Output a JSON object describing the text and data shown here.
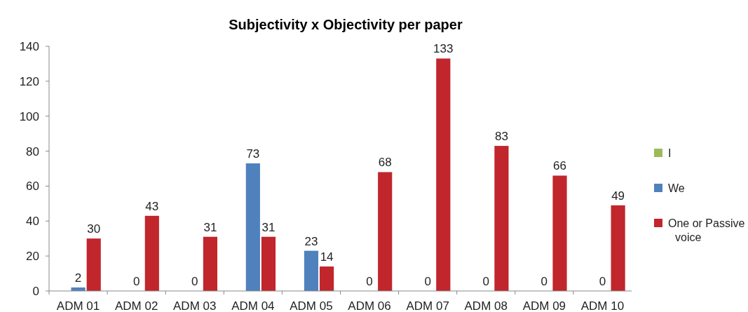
{
  "chart_data": {
    "type": "bar",
    "title": "Subjectivity x Objectivity per paper",
    "categories": [
      "ADM 01",
      "ADM 02",
      "ADM 03",
      "ADM 04",
      "ADM 05",
      "ADM 06",
      "ADM 07",
      "ADM 08",
      "ADM 09",
      "ADM 10"
    ],
    "series": [
      {
        "name": "I",
        "color": "#9bbb59",
        "values": [
          0,
          0,
          0,
          0,
          0,
          0,
          0,
          0,
          0,
          0
        ],
        "value_labels": [
          null,
          null,
          null,
          null,
          null,
          null,
          null,
          null,
          null,
          null
        ]
      },
      {
        "name": "We",
        "color": "#4f81bd",
        "values": [
          2,
          0,
          0,
          73,
          23,
          0,
          0,
          0,
          0,
          0
        ],
        "value_labels": [
          "2",
          "0",
          "0",
          "73",
          "23",
          "0",
          "0",
          "0",
          "0",
          "0"
        ]
      },
      {
        "name": "One or Passive voice",
        "color": "#c0262c",
        "values": [
          30,
          43,
          31,
          31,
          14,
          68,
          133,
          83,
          66,
          49
        ],
        "value_labels": [
          "30",
          "43",
          "31",
          "31",
          "14",
          "68",
          "133",
          "83",
          "66",
          "49"
        ]
      }
    ],
    "ylim": [
      0,
      140
    ],
    "yticks": [
      0,
      20,
      40,
      60,
      80,
      100,
      120,
      140
    ],
    "grid": false,
    "legend": "right"
  }
}
